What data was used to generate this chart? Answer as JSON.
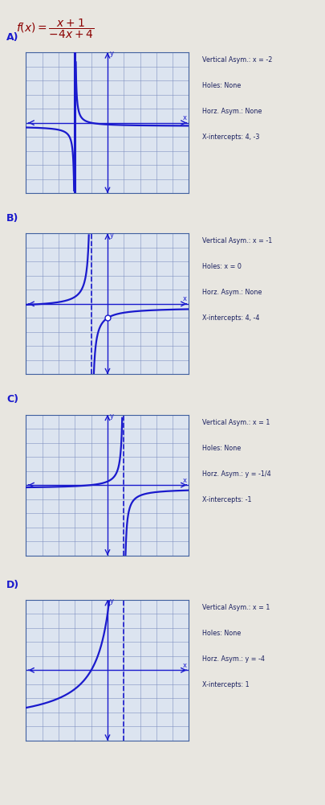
{
  "bg_color": "#e8e6e0",
  "graph_bg": "#dce4f0",
  "graph_border": "#4060a0",
  "line_color": "#1a1acd",
  "grid_color": "#8090c0",
  "formula_color": "#8B0000",
  "text_color": "#1a2060",
  "panels": [
    {
      "label": "A)",
      "vert_asym": -2,
      "vert_asym_solid": true,
      "hole": null,
      "horz_asym": null,
      "text": [
        "Vertical Asym.: x = -2",
        "Holes: None",
        "Horz. Asym.: None",
        "X-intercepts: 4, -3"
      ],
      "xlim": [
        -5,
        5
      ],
      "ylim": [
        -5,
        5
      ],
      "func_type": "A"
    },
    {
      "label": "B)",
      "vert_asym": -1,
      "vert_asym_solid": false,
      "hole": 0,
      "horz_asym": null,
      "text": [
        "Vertical Asym.: x = -1",
        "Holes: x = 0",
        "Horz. Asym.: None",
        "X-intercepts: 4, -4"
      ],
      "xlim": [
        -5,
        5
      ],
      "ylim": [
        -5,
        5
      ],
      "func_type": "B"
    },
    {
      "label": "C)",
      "vert_asym": 1,
      "vert_asym_solid": false,
      "hole": null,
      "horz_asym": -0.25,
      "text": [
        "Vertical Asym.: x = 1",
        "Holes: None",
        "Horz. Asym.: y = -1/4",
        "X-intercepts: -1"
      ],
      "xlim": [
        -5,
        5
      ],
      "ylim": [
        -5,
        5
      ],
      "func_type": "C"
    },
    {
      "label": "D)",
      "vert_asym": 1,
      "vert_asym_solid": false,
      "hole": null,
      "horz_asym": -4,
      "text": [
        "Vertical Asym.: x = 1",
        "Holes: None",
        "Horz. Asym.: y = -4",
        "X-intercepts: 1"
      ],
      "xlim": [
        -5,
        5
      ],
      "ylim": [
        -5,
        5
      ],
      "func_type": "D"
    }
  ]
}
